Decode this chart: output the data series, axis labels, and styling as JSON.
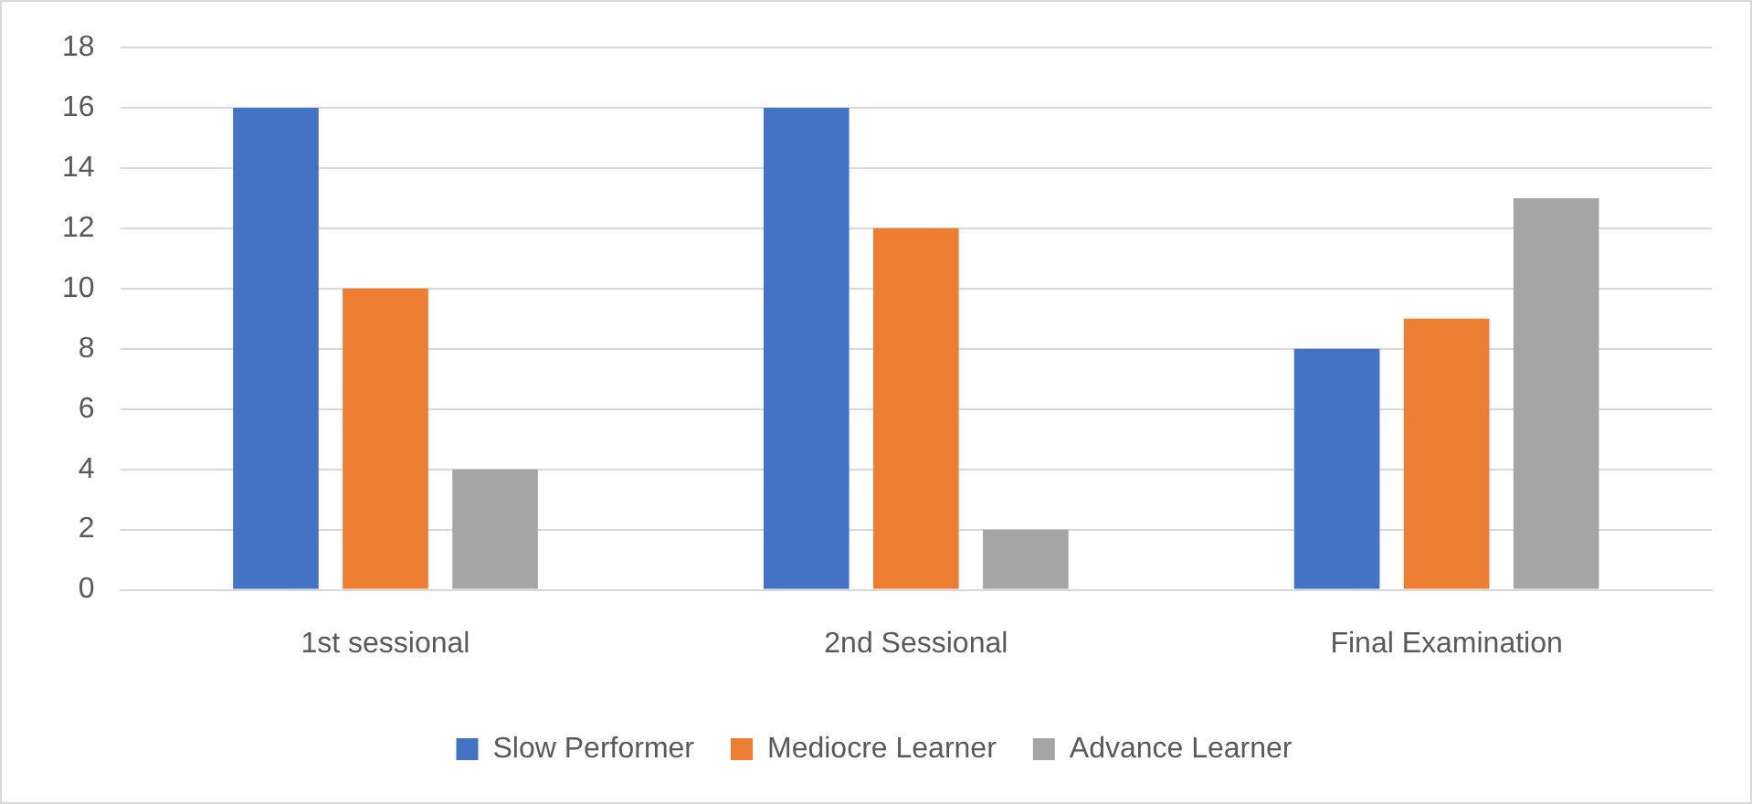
{
  "chart_data": {
    "type": "bar",
    "categories": [
      "1st sessional",
      "2nd Sessional",
      "Final Examination"
    ],
    "series": [
      {
        "name": "Slow Performer",
        "color": "#4472c4",
        "values": [
          16,
          16,
          8
        ]
      },
      {
        "name": "Mediocre Learner",
        "color": "#ed7d31",
        "values": [
          10,
          12,
          9
        ]
      },
      {
        "name": "Advance Learner",
        "color": "#a5a5a5",
        "values": [
          4,
          2,
          13
        ]
      }
    ],
    "ylim": [
      0,
      18
    ],
    "yticks": [
      0,
      2,
      4,
      6,
      8,
      10,
      12,
      14,
      16,
      18
    ],
    "grid": "y",
    "legend": "bottom"
  }
}
